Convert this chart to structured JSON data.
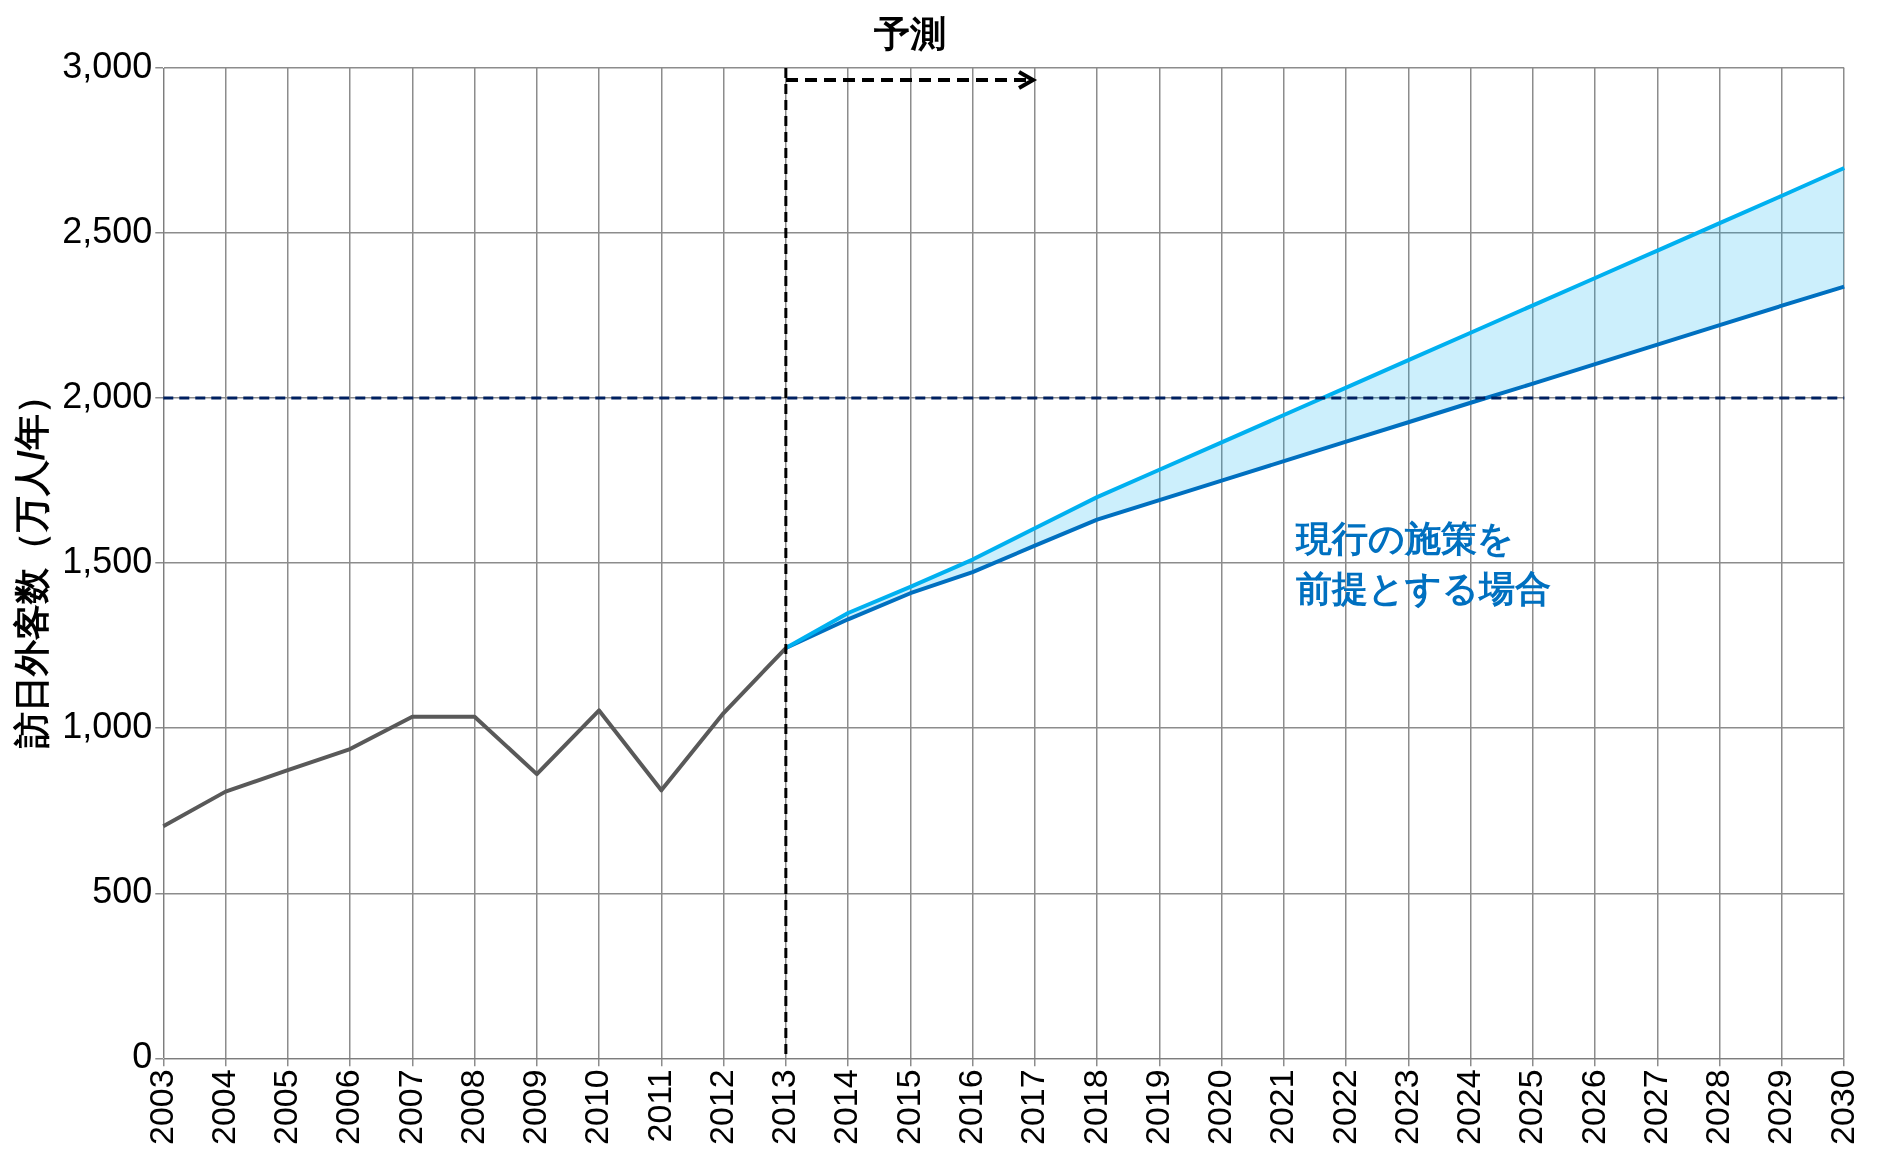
{
  "chart_data": {
    "type": "line",
    "ylabel": "訪日外客数（万人/年）",
    "categories": [
      "2003",
      "2004",
      "2005",
      "2006",
      "2007",
      "2008",
      "2009",
      "2010",
      "2011",
      "2012",
      "2013",
      "2014",
      "2015",
      "2016",
      "2017",
      "2018",
      "2019",
      "2020",
      "2021",
      "2022",
      "2023",
      "2024",
      "2025",
      "2026",
      "2027",
      "2028",
      "2029",
      "2030"
    ],
    "series": [
      {
        "color": "#595959",
        "values": [
          703,
          808,
          873,
          937,
          1035,
          1035,
          861,
          1054,
          812,
          1046,
          1243,
          null,
          null,
          null,
          null,
          null,
          null,
          null,
          null,
          null,
          null,
          null,
          null,
          null,
          null,
          null,
          null,
          null
        ]
      },
      {
        "color": "#00b0f0",
        "values": [
          null,
          null,
          null,
          null,
          null,
          null,
          null,
          null,
          null,
          null,
          1243,
          1349,
          1428,
          1511,
          1606,
          1700,
          1783,
          1866,
          1949,
          2032,
          2115,
          2198,
          2281,
          2364,
          2447,
          2530,
          2613,
          2697
        ],
        "lower": [
          null,
          null,
          null,
          null,
          null,
          null,
          null,
          null,
          null,
          null,
          1243,
          1330,
          1409,
          1473,
          1553,
          1632,
          1691,
          1750,
          1809,
          1868,
          1927,
          1986,
          2044,
          2103,
          2162,
          2221,
          2280,
          2338
        ],
        "upper": [
          null,
          null,
          null,
          null,
          null,
          null,
          null,
          null,
          null,
          null,
          1243,
          1349,
          1428,
          1511,
          1606,
          1700,
          1783,
          1866,
          1949,
          2032,
          2115,
          2198,
          2281,
          2364,
          2447,
          2530,
          2613,
          2697
        ]
      },
      {
        "color": "#0070c0",
        "values": [
          null,
          null,
          null,
          null,
          null,
          null,
          null,
          null,
          null,
          null,
          1243,
          1330,
          1409,
          1473,
          1553,
          1632,
          1691,
          1750,
          1809,
          1868,
          1927,
          1986,
          2044,
          2103,
          2162,
          2221,
          2280,
          2338
        ]
      }
    ],
    "ylim": [
      0,
      3000
    ],
    "yticks": [
      {
        "value": 0,
        "label": "0"
      },
      {
        "value": 500,
        "label": "500"
      },
      {
        "value": 1000,
        "label": "1,000"
      },
      {
        "value": 1500,
        "label": "1,500"
      },
      {
        "value": 2000,
        "label": "2,000"
      },
      {
        "value": 2500,
        "label": "2,500"
      },
      {
        "value": 3000,
        "label": "3,000"
      }
    ],
    "grid": true,
    "legend": false,
    "marker": "none",
    "line_style": "solid",
    "ref_lines": [
      {
        "axis": "y",
        "value": 2000,
        "color": "#002060",
        "line_style": "dashed"
      },
      {
        "axis": "x",
        "value": "2013",
        "color": "#000000",
        "line_style": "dashed"
      }
    ],
    "annotations": [
      "予測",
      "現行の施策を",
      "前提とする場合"
    ]
  }
}
